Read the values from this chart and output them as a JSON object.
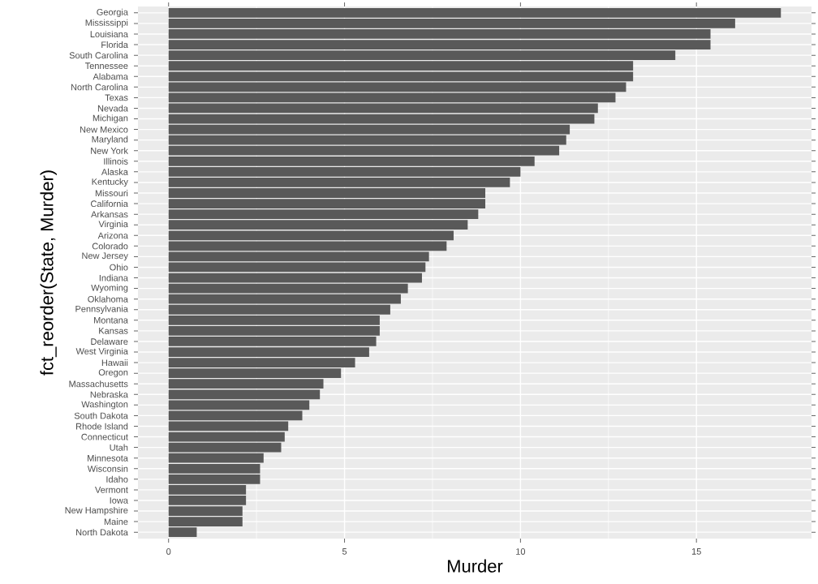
{
  "chart_data": {
    "type": "bar",
    "orientation": "horizontal",
    "xlabel": "Murder",
    "ylabel": "fct_reorder(State, Murder)",
    "categories": [
      "Georgia",
      "Mississippi",
      "Louisiana",
      "Florida",
      "South Carolina",
      "Tennessee",
      "Alabama",
      "North Carolina",
      "Texas",
      "Nevada",
      "Michigan",
      "New Mexico",
      "Maryland",
      "New York",
      "Illinois",
      "Alaska",
      "Kentucky",
      "Missouri",
      "California",
      "Arkansas",
      "Virginia",
      "Arizona",
      "Colorado",
      "New Jersey",
      "Ohio",
      "Indiana",
      "Wyoming",
      "Oklahoma",
      "Pennsylvania",
      "Montana",
      "Kansas",
      "Delaware",
      "West Virginia",
      "Hawaii",
      "Oregon",
      "Massachusetts",
      "Nebraska",
      "Washington",
      "South Dakota",
      "Rhode Island",
      "Connecticut",
      "Utah",
      "Minnesota",
      "Wisconsin",
      "Idaho",
      "Vermont",
      "Iowa",
      "New Hampshire",
      "Maine",
      "North Dakota"
    ],
    "values": [
      17.4,
      16.1,
      15.4,
      15.4,
      14.4,
      13.2,
      13.2,
      13.0,
      12.7,
      12.2,
      12.1,
      11.4,
      11.3,
      11.1,
      10.4,
      10.0,
      9.7,
      9.0,
      9.0,
      8.8,
      8.5,
      8.1,
      7.9,
      7.4,
      7.3,
      7.2,
      6.8,
      6.6,
      6.3,
      6.0,
      6.0,
      5.9,
      5.7,
      5.3,
      4.9,
      4.4,
      4.3,
      4.0,
      3.8,
      3.4,
      3.3,
      3.2,
      2.7,
      2.6,
      2.6,
      2.2,
      2.2,
      2.1,
      2.1,
      0.8
    ],
    "color": "#595959",
    "xlim": [
      -0.87,
      18.27
    ],
    "xticks": [
      0,
      5,
      10,
      15
    ],
    "grid": true
  }
}
